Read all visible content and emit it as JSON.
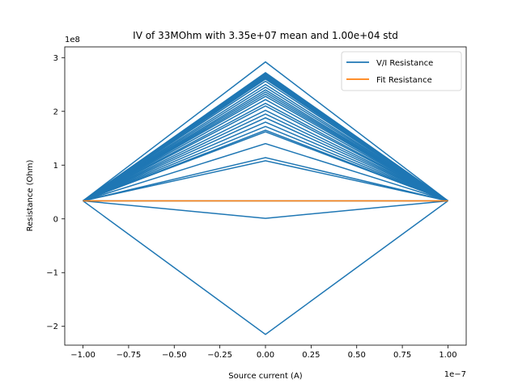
{
  "chart_data": {
    "type": "line",
    "title": "IV of 33MOhm with 3.35e+07 mean and 1.00e+04 std",
    "xlabel": "Source current (A)",
    "ylabel": "Resistance (Ohm)",
    "x_multiplier": "1e−7",
    "y_multiplier": "1e8",
    "xlim": [
      -1.1,
      1.1
    ],
    "ylim": [
      -2.35,
      3.2
    ],
    "x_ticks": [
      -1.0,
      -0.75,
      -0.5,
      -0.25,
      0.0,
      0.25,
      0.5,
      0.75,
      1.0
    ],
    "x_tick_labels": [
      "−1.00",
      "−0.75",
      "−0.50",
      "−0.25",
      "0.00",
      "0.25",
      "0.50",
      "0.75",
      "1.00"
    ],
    "y_ticks": [
      -2,
      -1,
      0,
      1,
      2,
      3
    ],
    "y_tick_labels": [
      "−2",
      "−1",
      "0",
      "1",
      "2",
      "3"
    ],
    "grid": false,
    "legend_position": "top-right",
    "x": [
      -1.0,
      0.0,
      1.0
    ],
    "endpoint_value": 0.335,
    "vi_center_values": [
      2.92,
      2.72,
      2.7,
      2.68,
      2.66,
      2.64,
      2.62,
      2.6,
      2.56,
      2.5,
      2.45,
      2.4,
      2.36,
      2.32,
      2.28,
      2.22,
      2.15,
      2.1,
      2.02,
      1.95,
      1.88,
      1.8,
      1.72,
      1.65,
      1.62,
      1.4,
      1.14,
      1.08,
      0.335,
      0.01,
      -2.15
    ],
    "series": [
      {
        "name": "V/I Resistance",
        "color": "#1f77b4"
      },
      {
        "name": "Fit Resistance",
        "color": "#ff7f0e",
        "values": [
          0.335,
          0.335,
          0.335
        ]
      }
    ]
  }
}
